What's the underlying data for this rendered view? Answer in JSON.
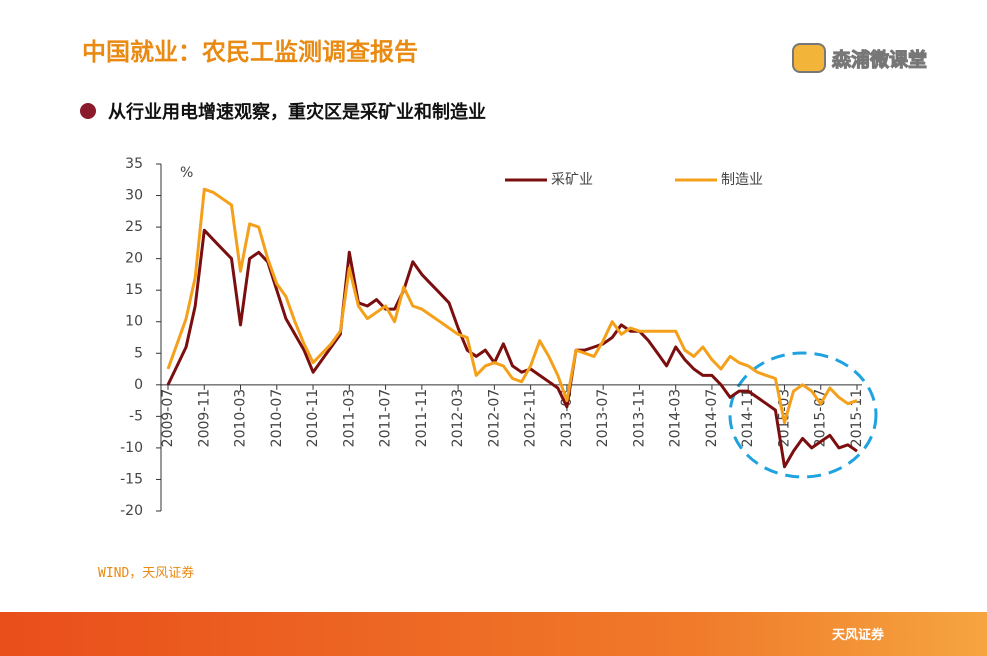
{
  "header": {
    "title": "中国就业：农民工监测调查报告",
    "logo": "森浦微课堂"
  },
  "bullet": "从行业用电增速观察，重灾区是采矿业和制造业",
  "chart_data": {
    "type": "line",
    "y_unit": "%",
    "categories": [
      "2009-07",
      null,
      null,
      null,
      "2009-11",
      null,
      null,
      null,
      "2010-03",
      null,
      null,
      null,
      "2010-07",
      null,
      null,
      null,
      "2010-11",
      null,
      null,
      null,
      "2011-03",
      null,
      null,
      null,
      "2011-07",
      null,
      null,
      null,
      "2011-11",
      null,
      null,
      null,
      "2012-03",
      null,
      null,
      null,
      "2012-07",
      null,
      null,
      null,
      "2012-11",
      null,
      null,
      null,
      "2013-03",
      null,
      null,
      null,
      "2013-07",
      null,
      null,
      null,
      "2013-11",
      null,
      null,
      null,
      "2014-03",
      null,
      null,
      null,
      "2014-07",
      null,
      null,
      null,
      "2014-11",
      null,
      null,
      null,
      "2015-03",
      null,
      null,
      null,
      "2015-07",
      null,
      null,
      null,
      "2015-11"
    ],
    "series": [
      {
        "name": "采矿业",
        "color": "#7b0f0f",
        "values": [
          0,
          3,
          6,
          12.5,
          24.5,
          23,
          21.5,
          20,
          9.5,
          20,
          21,
          19.5,
          15,
          10.5,
          8,
          5.5,
          2,
          4,
          6,
          8,
          21,
          13,
          12.5,
          13.5,
          12,
          12,
          15,
          19.5,
          17.5,
          16,
          14.5,
          13,
          9,
          5.5,
          4.5,
          5.5,
          3.5,
          6.5,
          3,
          2,
          2.5,
          1.5,
          0.5,
          -0.5,
          -3.5,
          5.5,
          5.5,
          6,
          6.5,
          7.5,
          9.5,
          8.5,
          8.5,
          7,
          5,
          3,
          6,
          4,
          2.5,
          1.5,
          1.5,
          0,
          -2,
          -1,
          -1,
          -2,
          -3,
          -4,
          -13,
          -10.5,
          -8.5,
          -10,
          -9,
          -8,
          -10,
          -9.5,
          -10.5
        ]
      },
      {
        "name": "制造业",
        "color": "#f5a01a",
        "values": [
          2.5,
          6.5,
          10.5,
          17,
          31,
          30.5,
          29.5,
          28.5,
          18,
          25.5,
          25,
          20,
          16,
          14,
          10,
          6.5,
          3.5,
          5,
          6.5,
          8.5,
          18.5,
          12.5,
          10.5,
          11.5,
          12.5,
          10,
          15.5,
          12.5,
          12,
          11,
          10,
          9,
          8,
          7.5,
          1.5,
          3,
          3.5,
          3,
          1,
          0.5,
          3,
          7,
          4.5,
          1.5,
          -2.5,
          5.5,
          5,
          4.5,
          7,
          10,
          8,
          9,
          8.5,
          8.5,
          8.5,
          8.5,
          8.5,
          5.5,
          4.5,
          6,
          4,
          2.5,
          4.5,
          3.5,
          3,
          2,
          1.5,
          1,
          -6,
          -1,
          0,
          -1,
          -3,
          -0.5,
          -2,
          -3,
          -2.5
        ]
      }
    ],
    "ylim": [
      -20,
      35
    ],
    "yticks": [
      -20,
      -15,
      -10,
      -5,
      0,
      5,
      10,
      15,
      20,
      25,
      30,
      35
    ]
  },
  "source": "WIND，天风证券",
  "footer": {
    "brand": "天风证券"
  }
}
